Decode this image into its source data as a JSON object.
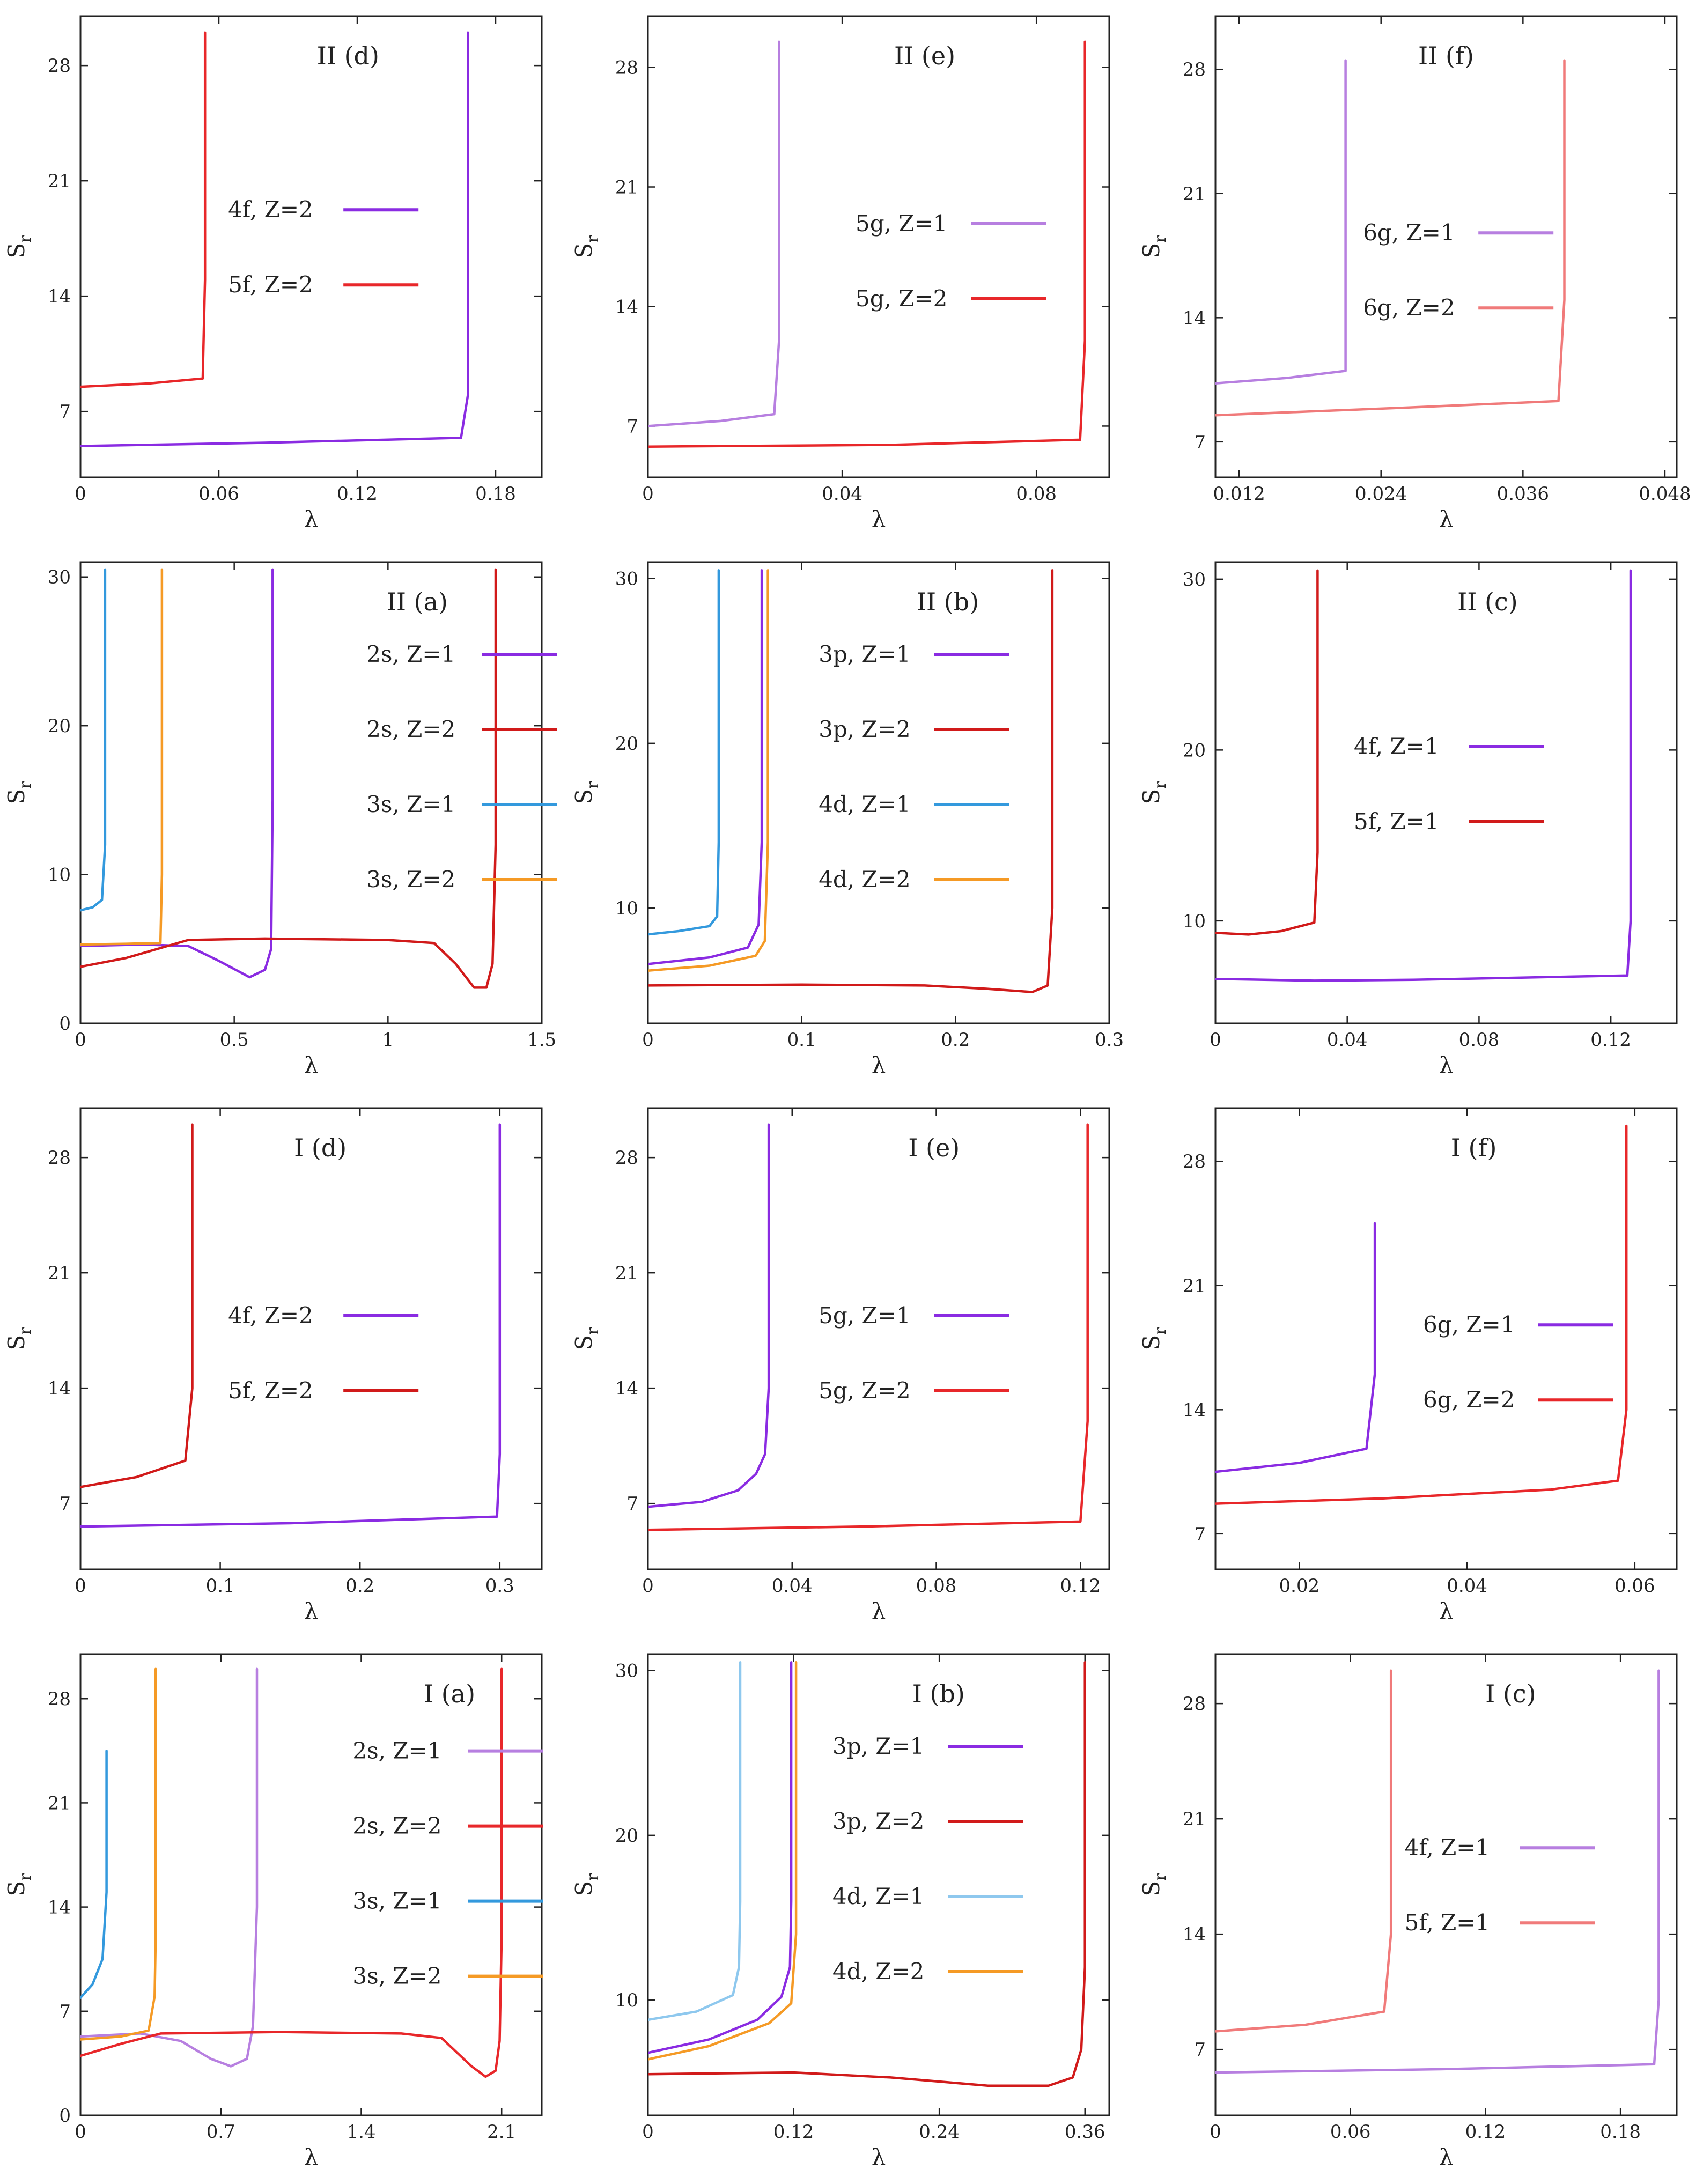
{
  "figure": {
    "name": "S_r versus lambda, twelve-panel figure"
  },
  "chart_data": [
    {
      "id": "II-d",
      "type": "line",
      "title": "II (d)",
      "xlabel": "λ",
      "ylabel": "S_r",
      "xlim": [
        0,
        0.2
      ],
      "ylim": [
        3,
        31
      ],
      "xticks": [
        0,
        0.06,
        0.12,
        0.18
      ],
      "xtick_labels": [
        "0",
        "0.06",
        "0.12",
        "0.18"
      ],
      "yticks": [
        7,
        14,
        21,
        28
      ],
      "ytick_labels": [
        "7",
        "14",
        "21",
        "28"
      ],
      "series": [
        {
          "name": "4f, Z=2",
          "color": "#8a2be2",
          "x": [
            0,
            0.08,
            0.165,
            0.168,
            0.168
          ],
          "y": [
            4.9,
            5.1,
            5.4,
            8,
            30
          ]
        },
        {
          "name": "5f, Z=2",
          "color": "#e8272a",
          "x": [
            0,
            0.03,
            0.053,
            0.054,
            0.054
          ],
          "y": [
            8.5,
            8.7,
            9.0,
            15,
            30
          ]
        }
      ]
    },
    {
      "id": "II-e",
      "type": "line",
      "title": "II (e)",
      "xlabel": "λ",
      "ylabel": "S_r",
      "xlim": [
        0,
        0.095
      ],
      "ylim": [
        4,
        31
      ],
      "xticks": [
        0,
        0.04,
        0.08
      ],
      "xtick_labels": [
        "0",
        "0.04",
        "0.08"
      ],
      "yticks": [
        7,
        14,
        21,
        28
      ],
      "ytick_labels": [
        "7",
        "14",
        "21",
        "28"
      ],
      "series": [
        {
          "name": "5g, Z=1",
          "color": "#b77fe0",
          "x": [
            0,
            0.015,
            0.026,
            0.027,
            0.027
          ],
          "y": [
            7.0,
            7.3,
            7.7,
            12,
            29.5
          ]
        },
        {
          "name": "5g, Z=2",
          "color": "#e8272a",
          "x": [
            0,
            0.05,
            0.089,
            0.09,
            0.09
          ],
          "y": [
            5.8,
            5.9,
            6.2,
            12,
            29.5
          ]
        }
      ]
    },
    {
      "id": "II-f",
      "type": "line",
      "title": "II (f)",
      "xlabel": "λ",
      "ylabel": "S_r",
      "xlim": [
        0.01,
        0.049
      ],
      "ylim": [
        5,
        31
      ],
      "xticks": [
        0.012,
        0.024,
        0.036,
        0.048
      ],
      "xtick_labels": [
        "0.012",
        "0.024",
        "0.036",
        "0.048"
      ],
      "yticks": [
        7,
        14,
        21,
        28
      ],
      "ytick_labels": [
        "7",
        "14",
        "21",
        "28"
      ],
      "series": [
        {
          "name": "6g, Z=1",
          "color": "#b77fe0",
          "x": [
            0.01,
            0.016,
            0.021,
            0.021,
            0.021
          ],
          "y": [
            10.3,
            10.6,
            11.0,
            16,
            28.5
          ]
        },
        {
          "name": "6g, Z=2",
          "color": "#f07a7a",
          "x": [
            0.01,
            0.025,
            0.039,
            0.0395,
            0.0395
          ],
          "y": [
            8.5,
            8.9,
            9.3,
            15,
            28.5
          ]
        }
      ]
    },
    {
      "id": "II-a",
      "type": "line",
      "title": "II (a)",
      "xlabel": "λ",
      "ylabel": "S_r",
      "xlim": [
        0,
        1.5
      ],
      "ylim": [
        0,
        31
      ],
      "xticks": [
        0,
        0.5,
        1,
        1.5
      ],
      "xtick_labels": [
        "0",
        "0.5",
        "1",
        "1.5"
      ],
      "yticks": [
        0,
        10,
        20,
        30
      ],
      "ytick_labels": [
        "0",
        "10",
        "20",
        "30"
      ],
      "series": [
        {
          "name": "2s, Z=1",
          "color": "#8a2be2",
          "x": [
            0,
            0.2,
            0.35,
            0.45,
            0.55,
            0.6,
            0.62,
            0.625,
            0.625
          ],
          "y": [
            5.2,
            5.3,
            5.2,
            4.2,
            3.1,
            3.6,
            5.0,
            15,
            30.5
          ]
        },
        {
          "name": "2s, Z=2",
          "color": "#d11a1a",
          "x": [
            0,
            0.15,
            0.35,
            0.6,
            1.0,
            1.15,
            1.22,
            1.28,
            1.32,
            1.34,
            1.35,
            1.35
          ],
          "y": [
            3.8,
            4.4,
            5.6,
            5.7,
            5.6,
            5.4,
            4.0,
            2.4,
            2.4,
            4.0,
            12,
            30.5
          ]
        },
        {
          "name": "3s, Z=1",
          "color": "#3399dd",
          "x": [
            0,
            0.04,
            0.07,
            0.08,
            0.08
          ],
          "y": [
            7.6,
            7.8,
            8.3,
            12,
            30.5
          ]
        },
        {
          "name": "3s, Z=2",
          "color": "#f59a25",
          "x": [
            0,
            0.15,
            0.26,
            0.265,
            0.265
          ],
          "y": [
            5.3,
            5.35,
            5.4,
            10,
            30.5
          ]
        }
      ]
    },
    {
      "id": "II-b",
      "type": "line",
      "title": "II (b)",
      "xlabel": "λ",
      "ylabel": "S_r",
      "xlim": [
        0,
        0.3
      ],
      "ylim": [
        3,
        31
      ],
      "xticks": [
        0,
        0.1,
        0.2,
        0.3
      ],
      "xtick_labels": [
        "0",
        "0.1",
        "0.2",
        "0.3"
      ],
      "yticks": [
        10,
        20,
        30
      ],
      "ytick_labels": [
        "10",
        "20",
        "30"
      ],
      "series": [
        {
          "name": "3p, Z=1",
          "color": "#8a2be2",
          "x": [
            0,
            0.04,
            0.065,
            0.072,
            0.074,
            0.074
          ],
          "y": [
            6.6,
            7.0,
            7.6,
            9,
            14,
            30.5
          ]
        },
        {
          "name": "3p, Z=2",
          "color": "#d11a1a",
          "x": [
            0,
            0.1,
            0.18,
            0.22,
            0.25,
            0.26,
            0.263,
            0.263
          ],
          "y": [
            5.3,
            5.35,
            5.3,
            5.1,
            4.9,
            5.3,
            10,
            30.5
          ]
        },
        {
          "name": "4d, Z=1",
          "color": "#3399dd",
          "x": [
            0,
            0.02,
            0.04,
            0.045,
            0.046,
            0.046
          ],
          "y": [
            8.4,
            8.6,
            8.9,
            9.5,
            14,
            30.5
          ]
        },
        {
          "name": "4d, Z=2",
          "color": "#f59a25",
          "x": [
            0,
            0.04,
            0.07,
            0.076,
            0.078,
            0.078
          ],
          "y": [
            6.2,
            6.5,
            7.1,
            8,
            14,
            30.5
          ]
        }
      ]
    },
    {
      "id": "II-c",
      "type": "line",
      "title": "II (c)",
      "xlabel": "λ",
      "ylabel": "S_r",
      "xlim": [
        0,
        0.14
      ],
      "ylim": [
        4,
        31
      ],
      "xticks": [
        0,
        0.04,
        0.08,
        0.12
      ],
      "xtick_labels": [
        "0",
        "0.04",
        "0.08",
        "0.12"
      ],
      "yticks": [
        10,
        20,
        30
      ],
      "ytick_labels": [
        "10",
        "20",
        "30"
      ],
      "series": [
        {
          "name": "4f, Z=1",
          "color": "#8a2be2",
          "x": [
            0,
            0.03,
            0.06,
            0.125,
            0.126,
            0.126
          ],
          "y": [
            6.6,
            6.5,
            6.55,
            6.8,
            10,
            30.5
          ]
        },
        {
          "name": "5f, Z=1",
          "color": "#d11a1a",
          "x": [
            0,
            0.01,
            0.02,
            0.03,
            0.031,
            0.031
          ],
          "y": [
            9.3,
            9.2,
            9.4,
            9.9,
            14,
            30.5
          ]
        }
      ]
    },
    {
      "id": "I-d",
      "type": "line",
      "title": "I (d)",
      "xlabel": "λ",
      "ylabel": "S_r",
      "xlim": [
        0,
        0.33
      ],
      "ylim": [
        3,
        31
      ],
      "xticks": [
        0,
        0.1,
        0.2,
        0.3
      ],
      "xtick_labels": [
        "0",
        "0.1",
        "0.2",
        "0.3"
      ],
      "yticks": [
        7,
        14,
        21,
        28
      ],
      "ytick_labels": [
        "7",
        "14",
        "21",
        "28"
      ],
      "series": [
        {
          "name": "4f, Z=2",
          "color": "#8a2be2",
          "x": [
            0,
            0.15,
            0.298,
            0.3,
            0.3
          ],
          "y": [
            5.6,
            5.8,
            6.2,
            10,
            30
          ]
        },
        {
          "name": "5f, Z=2",
          "color": "#d11a1a",
          "x": [
            0,
            0.04,
            0.075,
            0.08,
            0.08
          ],
          "y": [
            8.0,
            8.6,
            9.6,
            14,
            30
          ]
        }
      ]
    },
    {
      "id": "I-e",
      "type": "line",
      "title": "I (e)",
      "xlabel": "λ",
      "ylabel": "S_r",
      "xlim": [
        0,
        0.128
      ],
      "ylim": [
        3,
        31
      ],
      "xticks": [
        0,
        0.04,
        0.08,
        0.12
      ],
      "xtick_labels": [
        "0",
        "0.04",
        "0.08",
        "0.12"
      ],
      "yticks": [
        7,
        14,
        21,
        28
      ],
      "ytick_labels": [
        "7",
        "14",
        "21",
        "28"
      ],
      "series": [
        {
          "name": "5g, Z=1",
          "color": "#8a2be2",
          "x": [
            0,
            0.015,
            0.025,
            0.03,
            0.0325,
            0.0335,
            0.0335
          ],
          "y": [
            6.8,
            7.1,
            7.8,
            8.8,
            10,
            14,
            30
          ]
        },
        {
          "name": "5g, Z=2",
          "color": "#e8272a",
          "x": [
            0,
            0.06,
            0.12,
            0.122,
            0.122
          ],
          "y": [
            5.4,
            5.6,
            5.9,
            12,
            30
          ]
        }
      ]
    },
    {
      "id": "I-f",
      "type": "line",
      "title": "I (f)",
      "xlabel": "λ",
      "ylabel": "S_r",
      "xlim": [
        0.01,
        0.065
      ],
      "ylim": [
        5,
        31
      ],
      "xticks": [
        0.02,
        0.04,
        0.06
      ],
      "xtick_labels": [
        "0.02",
        "0.04",
        "0.06"
      ],
      "yticks": [
        7,
        14,
        21,
        28
      ],
      "ytick_labels": [
        "7",
        "14",
        "21",
        "28"
      ],
      "series": [
        {
          "name": "6g, Z=1",
          "color": "#8a2be2",
          "x": [
            0.01,
            0.02,
            0.028,
            0.029,
            0.029
          ],
          "y": [
            10.5,
            11.0,
            11.8,
            16,
            24.5
          ]
        },
        {
          "name": "6g, Z=2",
          "color": "#e8272a",
          "x": [
            0.01,
            0.03,
            0.05,
            0.058,
            0.059,
            0.059
          ],
          "y": [
            8.7,
            9.0,
            9.5,
            10.0,
            14,
            30
          ]
        }
      ]
    },
    {
      "id": "I-a",
      "type": "line",
      "title": "I (a)",
      "xlabel": "λ",
      "ylabel": "S_r",
      "xlim": [
        0,
        2.3
      ],
      "ylim": [
        0,
        31
      ],
      "xticks": [
        0,
        0.7,
        1.4,
        2.1
      ],
      "xtick_labels": [
        "0",
        "0.7",
        "1.4",
        "2.1"
      ],
      "yticks": [
        0,
        7,
        14,
        21,
        28
      ],
      "ytick_labels": [
        "0",
        "7",
        "14",
        "21",
        "28"
      ],
      "series": [
        {
          "name": "2s, Z=1",
          "color": "#b77fe0",
          "x": [
            0,
            0.3,
            0.5,
            0.65,
            0.75,
            0.83,
            0.86,
            0.88,
            0.88
          ],
          "y": [
            5.3,
            5.5,
            5.0,
            3.8,
            3.3,
            3.8,
            6,
            14,
            30
          ]
        },
        {
          "name": "2s, Z=2",
          "color": "#e8272a",
          "x": [
            0,
            0.2,
            0.4,
            1.0,
            1.6,
            1.8,
            1.95,
            2.02,
            2.07,
            2.09,
            2.1,
            2.1
          ],
          "y": [
            4.0,
            4.8,
            5.5,
            5.6,
            5.5,
            5.2,
            3.3,
            2.6,
            3.0,
            5,
            12,
            30
          ]
        },
        {
          "name": "3s, Z=1",
          "color": "#3399dd",
          "x": [
            0,
            0.06,
            0.11,
            0.13,
            0.13
          ],
          "y": [
            7.9,
            8.8,
            10.5,
            15,
            24.5
          ]
        },
        {
          "name": "3s, Z=2",
          "color": "#f59a25",
          "x": [
            0,
            0.2,
            0.34,
            0.37,
            0.375,
            0.375
          ],
          "y": [
            5.1,
            5.3,
            5.7,
            8,
            12,
            30
          ]
        }
      ]
    },
    {
      "id": "I-b",
      "type": "line",
      "title": "I (b)",
      "xlabel": "λ",
      "ylabel": "S_r",
      "xlim": [
        0,
        0.38
      ],
      "ylim": [
        3,
        31
      ],
      "xticks": [
        0,
        0.12,
        0.24,
        0.36
      ],
      "xtick_labels": [
        "0",
        "0.12",
        "0.24",
        "0.36"
      ],
      "yticks": [
        10,
        20,
        30
      ],
      "ytick_labels": [
        "10",
        "20",
        "30"
      ],
      "series": [
        {
          "name": "3p, Z=1",
          "color": "#8a2be2",
          "x": [
            0,
            0.05,
            0.09,
            0.11,
            0.117,
            0.118,
            0.118
          ],
          "y": [
            6.8,
            7.6,
            8.8,
            10.2,
            12,
            16,
            30.5
          ]
        },
        {
          "name": "3p, Z=2",
          "color": "#d11a1a",
          "x": [
            0,
            0.12,
            0.2,
            0.28,
            0.33,
            0.35,
            0.357,
            0.36,
            0.36
          ],
          "y": [
            5.5,
            5.6,
            5.3,
            4.8,
            4.8,
            5.3,
            7,
            12,
            30.5
          ]
        },
        {
          "name": "4d, Z=1",
          "color": "#8ec8ee",
          "x": [
            0,
            0.04,
            0.07,
            0.075,
            0.076,
            0.076
          ],
          "y": [
            8.8,
            9.3,
            10.3,
            12,
            16,
            30.5
          ]
        },
        {
          "name": "4d, Z=2",
          "color": "#f59a25",
          "x": [
            0,
            0.05,
            0.1,
            0.118,
            0.122,
            0.122
          ],
          "y": [
            6.4,
            7.2,
            8.6,
            9.8,
            14,
            30.5
          ]
        }
      ]
    },
    {
      "id": "I-c",
      "type": "line",
      "title": "I (c)",
      "xlabel": "λ",
      "ylabel": "S_r",
      "xlim": [
        0,
        0.205
      ],
      "ylim": [
        3,
        31
      ],
      "xticks": [
        0,
        0.06,
        0.12,
        0.18
      ],
      "xtick_labels": [
        "0",
        "0.06",
        "0.12",
        "0.18"
      ],
      "yticks": [
        7,
        14,
        21,
        28
      ],
      "ytick_labels": [
        "7",
        "14",
        "21",
        "28"
      ],
      "series": [
        {
          "name": "4f, Z=1",
          "color": "#b77fe0",
          "x": [
            0,
            0.1,
            0.195,
            0.197,
            0.197
          ],
          "y": [
            5.6,
            5.8,
            6.1,
            10,
            30
          ]
        },
        {
          "name": "5f, Z=1",
          "color": "#f07a7a",
          "x": [
            0,
            0.04,
            0.075,
            0.078,
            0.078
          ],
          "y": [
            8.1,
            8.5,
            9.3,
            14,
            30
          ]
        }
      ]
    }
  ]
}
